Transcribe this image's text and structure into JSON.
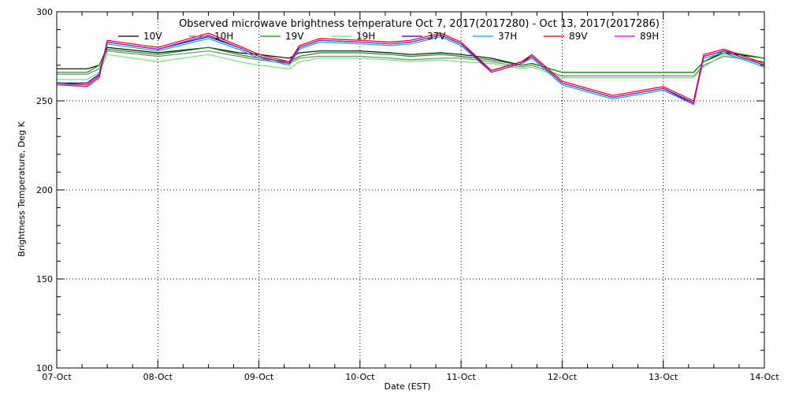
{
  "chart_data": {
    "type": "line",
    "title": "Observed microwave brightness temperature Oct  7, 2017(2017280) - Oct 13, 2017(2017286)",
    "xlabel": "Date (EST)",
    "ylabel": "Brightness Temperature, Deg K",
    "xlim": [
      0,
      7
    ],
    "ylim": [
      100,
      300
    ],
    "x_tick_values": [
      0,
      1,
      2,
      3,
      4,
      5,
      6,
      7
    ],
    "x_tick_labels": [
      "07-Oct",
      "08-Oct",
      "09-Oct",
      "10-Oct",
      "11-Oct",
      "12-Oct",
      "13-Oct",
      "14-Oct"
    ],
    "y_ticks": [
      100,
      150,
      200,
      250,
      300
    ],
    "grid": true,
    "legend_position": "top",
    "series": [
      {
        "name": "10V",
        "color": "#000000",
        "x": [
          0,
          0.3,
          0.42,
          0.5,
          1,
          1.5,
          1.8,
          2,
          2.3,
          2.4,
          2.6,
          3,
          3.3,
          3.5,
          3.8,
          4,
          4.3,
          4.6,
          4.7,
          5,
          5.5,
          6,
          6.3,
          6.4,
          6.6,
          7
        ],
        "values": [
          268,
          268,
          270,
          280,
          277,
          280,
          277,
          276,
          274,
          277,
          278,
          278,
          277,
          276,
          277,
          276,
          274,
          270,
          271,
          266,
          266,
          266,
          266,
          272,
          277,
          274
        ]
      },
      {
        "name": "10H",
        "color": "#7f7f7f",
        "x": [
          0,
          0.3,
          0.42,
          0.5,
          1,
          1.5,
          1.8,
          2,
          2.3,
          2.4,
          2.6,
          3,
          3.3,
          3.5,
          3.8,
          4,
          4.3,
          4.6,
          4.7,
          5,
          5.5,
          6,
          6.3,
          6.4,
          6.6,
          7
        ],
        "values": [
          265,
          265,
          268,
          278,
          275,
          278,
          275,
          273,
          271,
          274,
          275,
          275,
          274,
          273,
          274,
          274,
          272,
          269,
          270,
          264,
          264,
          264,
          264,
          270,
          275,
          272
        ]
      },
      {
        "name": "19V",
        "color": "#009900",
        "x": [
          0,
          0.3,
          0.42,
          0.5,
          1,
          1.5,
          1.8,
          2,
          2.3,
          2.4,
          2.6,
          3,
          3.3,
          3.5,
          3.8,
          4,
          4.3,
          4.6,
          4.7,
          5,
          5.5,
          6,
          6.3,
          6.4,
          6.6,
          7
        ],
        "values": [
          266,
          266,
          270,
          279,
          276,
          280,
          276,
          274,
          272,
          275,
          277,
          277,
          276,
          275,
          276,
          275,
          273,
          270,
          271,
          266,
          266,
          266,
          266,
          272,
          278,
          274
        ]
      },
      {
        "name": "19H",
        "color": "#66ee66",
        "x": [
          0,
          0.3,
          0.42,
          0.5,
          1,
          1.5,
          1.8,
          2,
          2.3,
          2.4,
          2.6,
          3,
          3.3,
          3.5,
          3.8,
          4,
          4.3,
          4.6,
          4.7,
          5,
          5.5,
          6,
          6.3,
          6.4,
          6.6,
          7
        ],
        "values": [
          262,
          262,
          266,
          276,
          272,
          276,
          272,
          270,
          268,
          272,
          274,
          274,
          273,
          272,
          273,
          272,
          271,
          268,
          269,
          263,
          263,
          263,
          263,
          269,
          276,
          271
        ]
      },
      {
        "name": "37V",
        "color": "#0000cc",
        "x": [
          0,
          0.3,
          0.42,
          0.5,
          1,
          1.5,
          1.8,
          2,
          2.3,
          2.4,
          2.6,
          3,
          3.3,
          3.5,
          3.8,
          4,
          4.3,
          4.6,
          4.7,
          5,
          5.5,
          6,
          6.3,
          6.4,
          6.6,
          7
        ],
        "values": [
          260,
          260,
          265,
          283,
          279,
          286,
          280,
          275,
          271,
          280,
          284,
          283,
          282,
          283,
          287,
          282,
          267,
          272,
          275,
          260,
          252,
          257,
          249,
          275,
          278,
          270
        ]
      },
      {
        "name": "37H",
        "color": "#00aacc",
        "x": [
          0,
          0.3,
          0.42,
          0.5,
          1,
          1.5,
          1.8,
          2,
          2.3,
          2.4,
          2.6,
          3,
          3.3,
          3.5,
          3.8,
          4,
          4.3,
          4.6,
          4.7,
          5,
          5.5,
          6,
          6.3,
          6.4,
          6.6,
          7
        ],
        "values": [
          259,
          259,
          264,
          282,
          278,
          285,
          279,
          274,
          270,
          279,
          283,
          282,
          281,
          282,
          286,
          281,
          266,
          271,
          274,
          259,
          251,
          256,
          248,
          274,
          277,
          269
        ]
      },
      {
        "name": "89V",
        "color": "#dd0000",
        "x": [
          0,
          0.3,
          0.42,
          0.5,
          1,
          1.5,
          1.8,
          2,
          2.3,
          2.4,
          2.6,
          3,
          3.3,
          3.5,
          3.8,
          4,
          4.3,
          4.6,
          4.7,
          5,
          5.5,
          6,
          6.3,
          6.4,
          6.6,
          7
        ],
        "values": [
          260,
          259,
          264,
          284,
          280,
          288,
          281,
          276,
          272,
          281,
          285,
          284,
          283,
          284,
          288,
          283,
          267,
          272,
          276,
          261,
          253,
          258,
          250,
          276,
          279,
          271
        ]
      },
      {
        "name": "89H",
        "color": "#cc00cc",
        "x": [
          0,
          0.3,
          0.42,
          0.5,
          1,
          1.5,
          1.8,
          2,
          2.3,
          2.4,
          2.6,
          3,
          3.3,
          3.5,
          3.8,
          4,
          4.3,
          4.6,
          4.7,
          5,
          5.5,
          6,
          6.3,
          6.4,
          6.6,
          7
        ],
        "values": [
          259,
          258,
          263,
          283,
          279,
          287,
          280,
          275,
          271,
          280,
          284,
          283,
          282,
          283,
          287,
          282,
          266,
          271,
          275,
          260,
          252,
          257,
          248,
          275,
          278,
          270
        ]
      }
    ]
  }
}
